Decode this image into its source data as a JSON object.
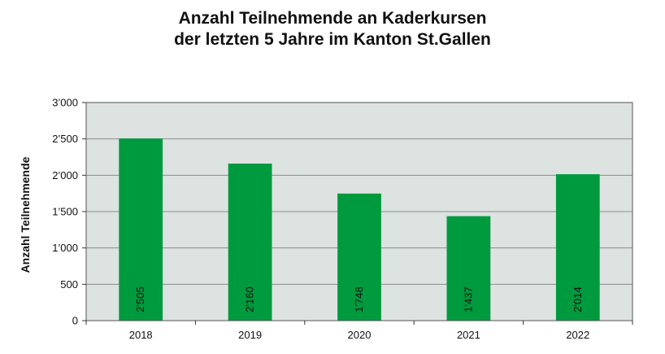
{
  "chart_data": {
    "type": "bar",
    "title_lines": [
      "Anzahl Teilnehmende an Kaderkursen",
      "der letzten 5 Jahre im Kanton St.Gallen"
    ],
    "ylabel": "Anzahl Teilnehmende",
    "xlabel": "",
    "categories": [
      "2018",
      "2019",
      "2020",
      "2021",
      "2022"
    ],
    "values": [
      2505,
      2160,
      1748,
      1437,
      2014
    ],
    "data_labels": [
      "2'505",
      "2'160",
      "1'748",
      "1'437",
      "2'014"
    ],
    "ylim": [
      0,
      3000
    ],
    "yticks": [
      0,
      500,
      1000,
      1500,
      2000,
      2500,
      3000
    ],
    "ytick_labels": [
      "0",
      "500",
      "1’000",
      "1’500",
      "2’000",
      "2’500",
      "3’000"
    ],
    "grid": true,
    "legend": "none",
    "colors": {
      "bar": "#009a3e",
      "plot_background": "#dde3e1",
      "gridline": "#8c8c8c"
    }
  }
}
